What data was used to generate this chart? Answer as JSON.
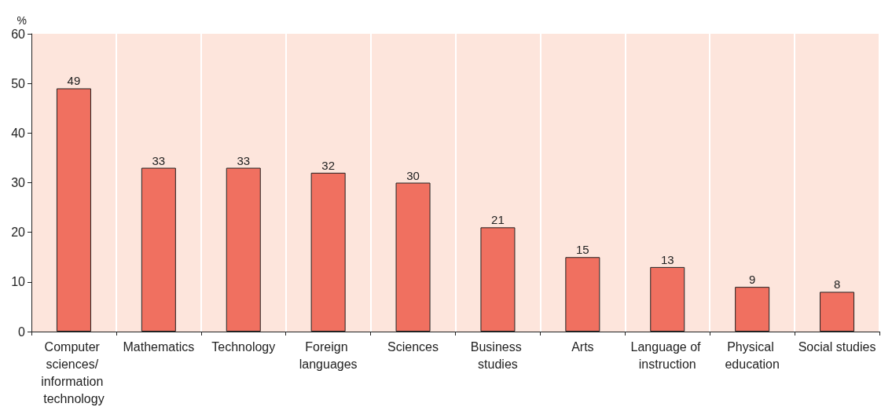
{
  "chart_data": {
    "type": "bar",
    "ylabel": "%",
    "categories": [
      "Computer sciences/ information technology",
      "Mathematics",
      "Technology",
      "Foreign languages",
      "Sciences",
      "Business studies",
      "Arts",
      "Language of instruction",
      "Physical education",
      "Social studies"
    ],
    "values": [
      49,
      33,
      33,
      32,
      30,
      21,
      15,
      13,
      9,
      8
    ],
    "color": "#f07060",
    "ylim": [
      0,
      60
    ],
    "yticks": [
      0,
      10,
      20,
      30,
      40,
      50,
      60
    ],
    "grid": "x",
    "data_labels": true
  }
}
